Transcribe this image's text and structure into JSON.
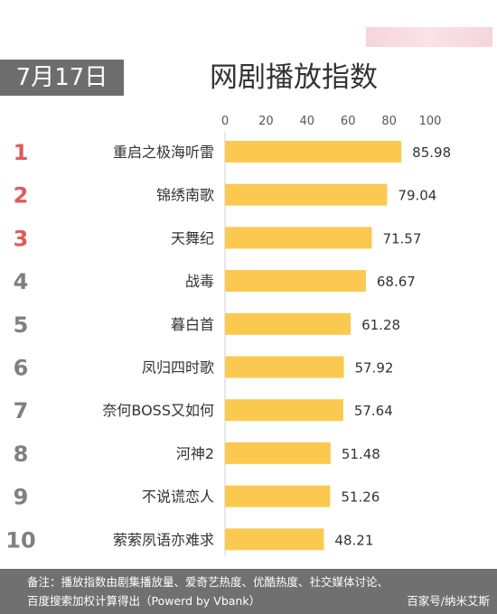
{
  "date_badge": "7月17日",
  "title": "网剧播放指数",
  "footer": {
    "note_line1": "备注：播放指数由剧集播放量、爱奇艺热度、优酷热度、社交媒体讨论、",
    "note_line2": "百度搜索加权计算得出（Powerd by Vbank）",
    "source": "百家号/纳米艾斯"
  },
  "colors": {
    "bar": "#fbc94f",
    "rank_top3": "#e05a5a",
    "rank_other": "#808080",
    "badge_bg": "#6d6d6d",
    "footer_bg": "#707070"
  },
  "chart_data": {
    "type": "bar",
    "orientation": "horizontal",
    "title": "网剧播放指数",
    "xlim": [
      0,
      100
    ],
    "x_ticks": [
      "0",
      "20",
      "40",
      "60",
      "80",
      "100"
    ],
    "axis_position": "top",
    "grid": false,
    "ranks": [
      "1",
      "2",
      "3",
      "4",
      "5",
      "6",
      "7",
      "8",
      "9",
      "10"
    ],
    "categories": [
      "重启之极海听雷",
      "锦绣南歌",
      "天舞纪",
      "战毒",
      "暮白首",
      "凤归四时歌",
      "奈何BOSS又如何",
      "河神2",
      "不说谎恋人",
      "萦萦夙语亦难求"
    ],
    "values": [
      85.98,
      79.04,
      71.57,
      68.67,
      61.28,
      57.92,
      57.64,
      51.48,
      51.26,
      48.21
    ],
    "value_labels": [
      "85.98",
      "79.04",
      "71.57",
      "68.67",
      "61.28",
      "57.92",
      "57.64",
      "51.48",
      "51.26",
      "48.21"
    ]
  }
}
